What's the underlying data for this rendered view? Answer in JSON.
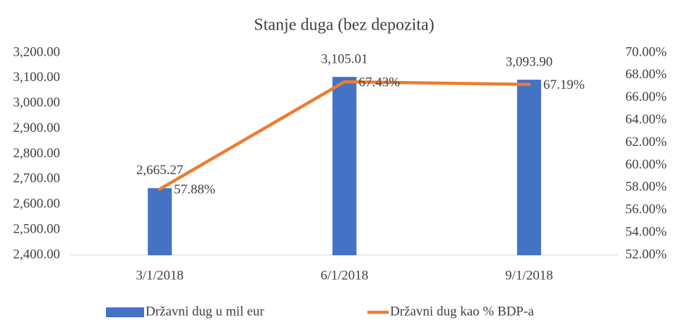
{
  "chart_data": {
    "type": "bar_line",
    "title": "Stanje duga (bez depozita)",
    "categories": [
      "3/1/2018",
      "6/1/2018",
      "9/1/2018"
    ],
    "series": [
      {
        "name": "Državni dug u mil eur",
        "type": "bar",
        "color": "#4472c4",
        "values": [
          2665.27,
          3105.01,
          3093.9
        ],
        "value_labels": [
          "2,665.27",
          "3,105.01",
          "3,093.90"
        ]
      },
      {
        "name": "Državni dug kao % BDP-a",
        "type": "line",
        "axis": "y2",
        "color": "#ed7d31",
        "values": [
          57.88,
          67.43,
          67.19
        ],
        "value_labels": [
          "57.88%",
          "67.43%",
          "67.19%"
        ]
      }
    ],
    "ylim": [
      2400,
      3200
    ],
    "yticks": [
      {
        "value": 2400,
        "label": "2,400.00"
      },
      {
        "value": 2500,
        "label": "2,500.00"
      },
      {
        "value": 2600,
        "label": "2,600.00"
      },
      {
        "value": 2700,
        "label": "2,700.00"
      },
      {
        "value": 2800,
        "label": "2,800.00"
      },
      {
        "value": 2900,
        "label": "2,900.00"
      },
      {
        "value": 3000,
        "label": "3,000.00"
      },
      {
        "value": 3100,
        "label": "3,100.00"
      },
      {
        "value": 3200,
        "label": "3,200.00"
      }
    ],
    "y2lim": [
      52,
      70
    ],
    "y2ticks": [
      {
        "value": 52,
        "label": "52.00%"
      },
      {
        "value": 54,
        "label": "54.00%"
      },
      {
        "value": 56,
        "label": "56.00%"
      },
      {
        "value": 58,
        "label": "58.00%"
      },
      {
        "value": 60,
        "label": "60.00%"
      },
      {
        "value": 62,
        "label": "62.00%"
      },
      {
        "value": 64,
        "label": "64.00%"
      },
      {
        "value": 66,
        "label": "66.00%"
      },
      {
        "value": 68,
        "label": "68.00%"
      },
      {
        "value": 70,
        "label": "70.00%"
      }
    ],
    "legend": "bottom",
    "grid": false
  }
}
